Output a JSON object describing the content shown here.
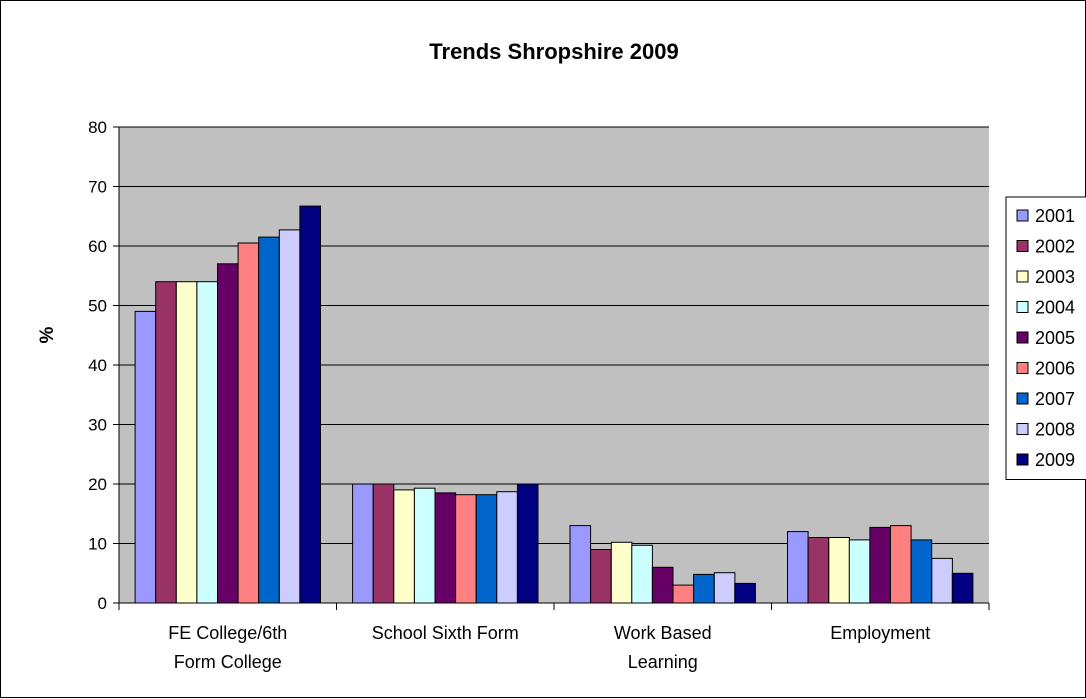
{
  "chart_data": {
    "type": "bar",
    "title": "Trends Shropshire 2009",
    "xlabel": "",
    "ylabel": "%",
    "ylim": [
      0,
      80
    ],
    "yticks": [
      0,
      10,
      20,
      30,
      40,
      50,
      60,
      70,
      80
    ],
    "grid": true,
    "legend_position": "right",
    "plot_background": "#c0c0c0",
    "categories": [
      [
        "FE College/6th",
        "Form College"
      ],
      [
        "School Sixth Form"
      ],
      [
        "Work Based",
        "Learning"
      ],
      [
        "Employment"
      ]
    ],
    "series": [
      {
        "name": "2001",
        "color": "#9999ff",
        "values": [
          49,
          20,
          13,
          12
        ]
      },
      {
        "name": "2002",
        "color": "#993366",
        "values": [
          54,
          20,
          9,
          11
        ]
      },
      {
        "name": "2003",
        "color": "#ffffcc",
        "values": [
          54,
          19,
          10.2,
          11
        ]
      },
      {
        "name": "2004",
        "color": "#ccffff",
        "values": [
          54,
          19.3,
          9.7,
          10.6
        ]
      },
      {
        "name": "2005",
        "color": "#660066",
        "values": [
          57,
          18.5,
          6,
          12.7
        ]
      },
      {
        "name": "2006",
        "color": "#ff8080",
        "values": [
          60.5,
          18.2,
          3,
          13
        ]
      },
      {
        "name": "2007",
        "color": "#0066cc",
        "values": [
          61.5,
          18.2,
          4.8,
          10.6
        ]
      },
      {
        "name": "2008",
        "color": "#ccccff",
        "values": [
          62.7,
          18.7,
          5.1,
          7.5
        ]
      },
      {
        "name": "2009",
        "color": "#000080",
        "values": [
          66.7,
          20,
          3.3,
          5
        ]
      }
    ]
  }
}
